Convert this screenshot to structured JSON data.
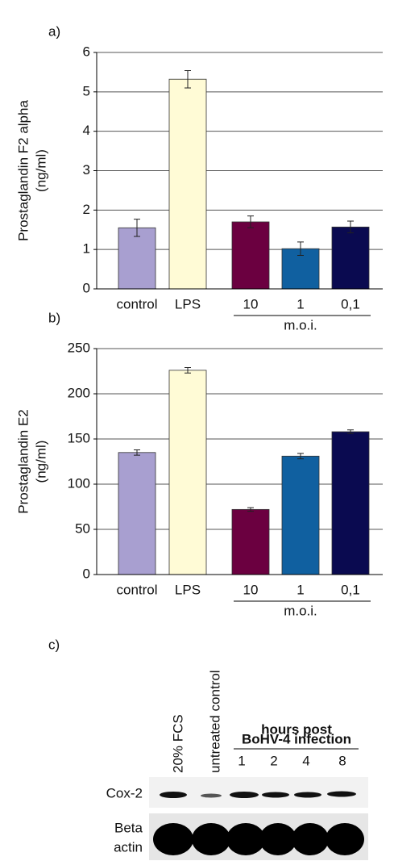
{
  "chart_data": [
    {
      "type": "bar",
      "panel_label": "a)",
      "y_label": [
        "Prostaglandin F2 alpha",
        "(ng/ml)"
      ],
      "categories": [
        "control",
        "LPS",
        "10",
        "1",
        "0,1"
      ],
      "group_label": "m.o.i.",
      "values": [
        1.55,
        5.32,
        1.7,
        1.02,
        1.57
      ],
      "errors": [
        0.22,
        0.22,
        0.15,
        0.17,
        0.15
      ],
      "colors": [
        "#a89fd0",
        "#fffbd6",
        "#6b0040",
        "#1060a0",
        "#0a0a50"
      ],
      "ylim": [
        0,
        6
      ],
      "yticks": [
        0,
        1,
        2,
        3,
        4,
        5,
        6
      ],
      "grid": true
    },
    {
      "type": "bar",
      "panel_label": "b)",
      "y_label": [
        "Prostaglandin E2",
        "(ng/ml)"
      ],
      "categories": [
        "control",
        "LPS",
        "10",
        "1",
        "0,1"
      ],
      "group_label": "m.o.i.",
      "values": [
        135,
        226,
        72,
        131,
        158
      ],
      "errors": [
        3,
        3,
        2,
        3,
        2
      ],
      "colors": [
        "#a89fd0",
        "#fffbd6",
        "#6b0040",
        "#1060a0",
        "#0a0a50"
      ],
      "ylim": [
        0,
        250
      ],
      "yticks": [
        0,
        50,
        100,
        150,
        200,
        250
      ],
      "grid": true
    }
  ],
  "blot": {
    "panel_label": "c)",
    "lanes": [
      "20% FCS",
      "untreated control"
    ],
    "time_header": [
      "hours post",
      "BoHV-4 infection"
    ],
    "time_lanes": [
      "1",
      "2",
      "4",
      "8"
    ],
    "rows": [
      "Cox-2",
      [
        "Beta",
        "actin"
      ]
    ]
  }
}
